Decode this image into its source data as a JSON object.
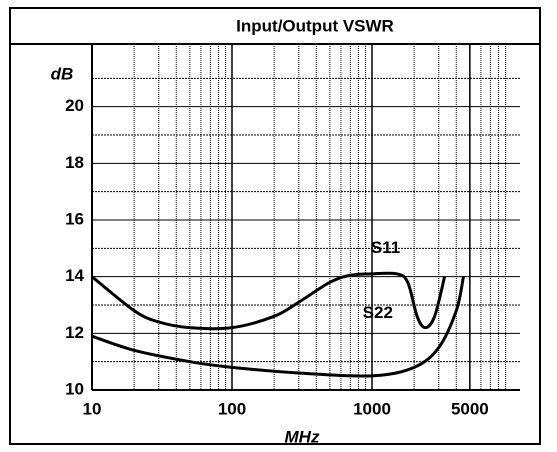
{
  "chart_data": {
    "type": "line",
    "title": "Input/Output  VSWR",
    "y_label": "dB",
    "x_label": "MHz",
    "log_x": true,
    "xlim": [
      10,
      10000
    ],
    "xticks": [
      10,
      100,
      1000,
      5000
    ],
    "xgrid": [
      20,
      30,
      40,
      50,
      60,
      70,
      80,
      90,
      200,
      300,
      400,
      500,
      600,
      700,
      800,
      900,
      2000,
      3000,
      4000,
      5000,
      6000,
      7000,
      8000,
      9000
    ],
    "ylim": [
      10,
      22
    ],
    "yticks": [
      10,
      12,
      14,
      16,
      18,
      20
    ],
    "ygrid": [
      11,
      13,
      15,
      17,
      19,
      21
    ],
    "grid": true,
    "series": [
      {
        "name": "S11",
        "color": "#000000",
        "x": [
          10,
          20,
          30,
          50,
          100,
          200,
          300,
          500,
          700,
          1000,
          1500,
          1800,
          2100,
          2400,
          2800,
          3300
        ],
        "values": [
          14.0,
          12.8,
          12.4,
          12.2,
          12.2,
          12.6,
          13.1,
          13.8,
          14.05,
          14.1,
          14.1,
          13.8,
          12.6,
          12.2,
          12.6,
          14.0
        ]
      },
      {
        "name": "S22",
        "color": "#000000",
        "x": [
          10,
          20,
          50,
          100,
          300,
          1000,
          2000,
          3000,
          4000,
          4500
        ],
        "values": [
          11.9,
          11.4,
          11.0,
          10.8,
          10.6,
          10.5,
          10.8,
          11.5,
          12.8,
          14.0
        ]
      }
    ]
  }
}
